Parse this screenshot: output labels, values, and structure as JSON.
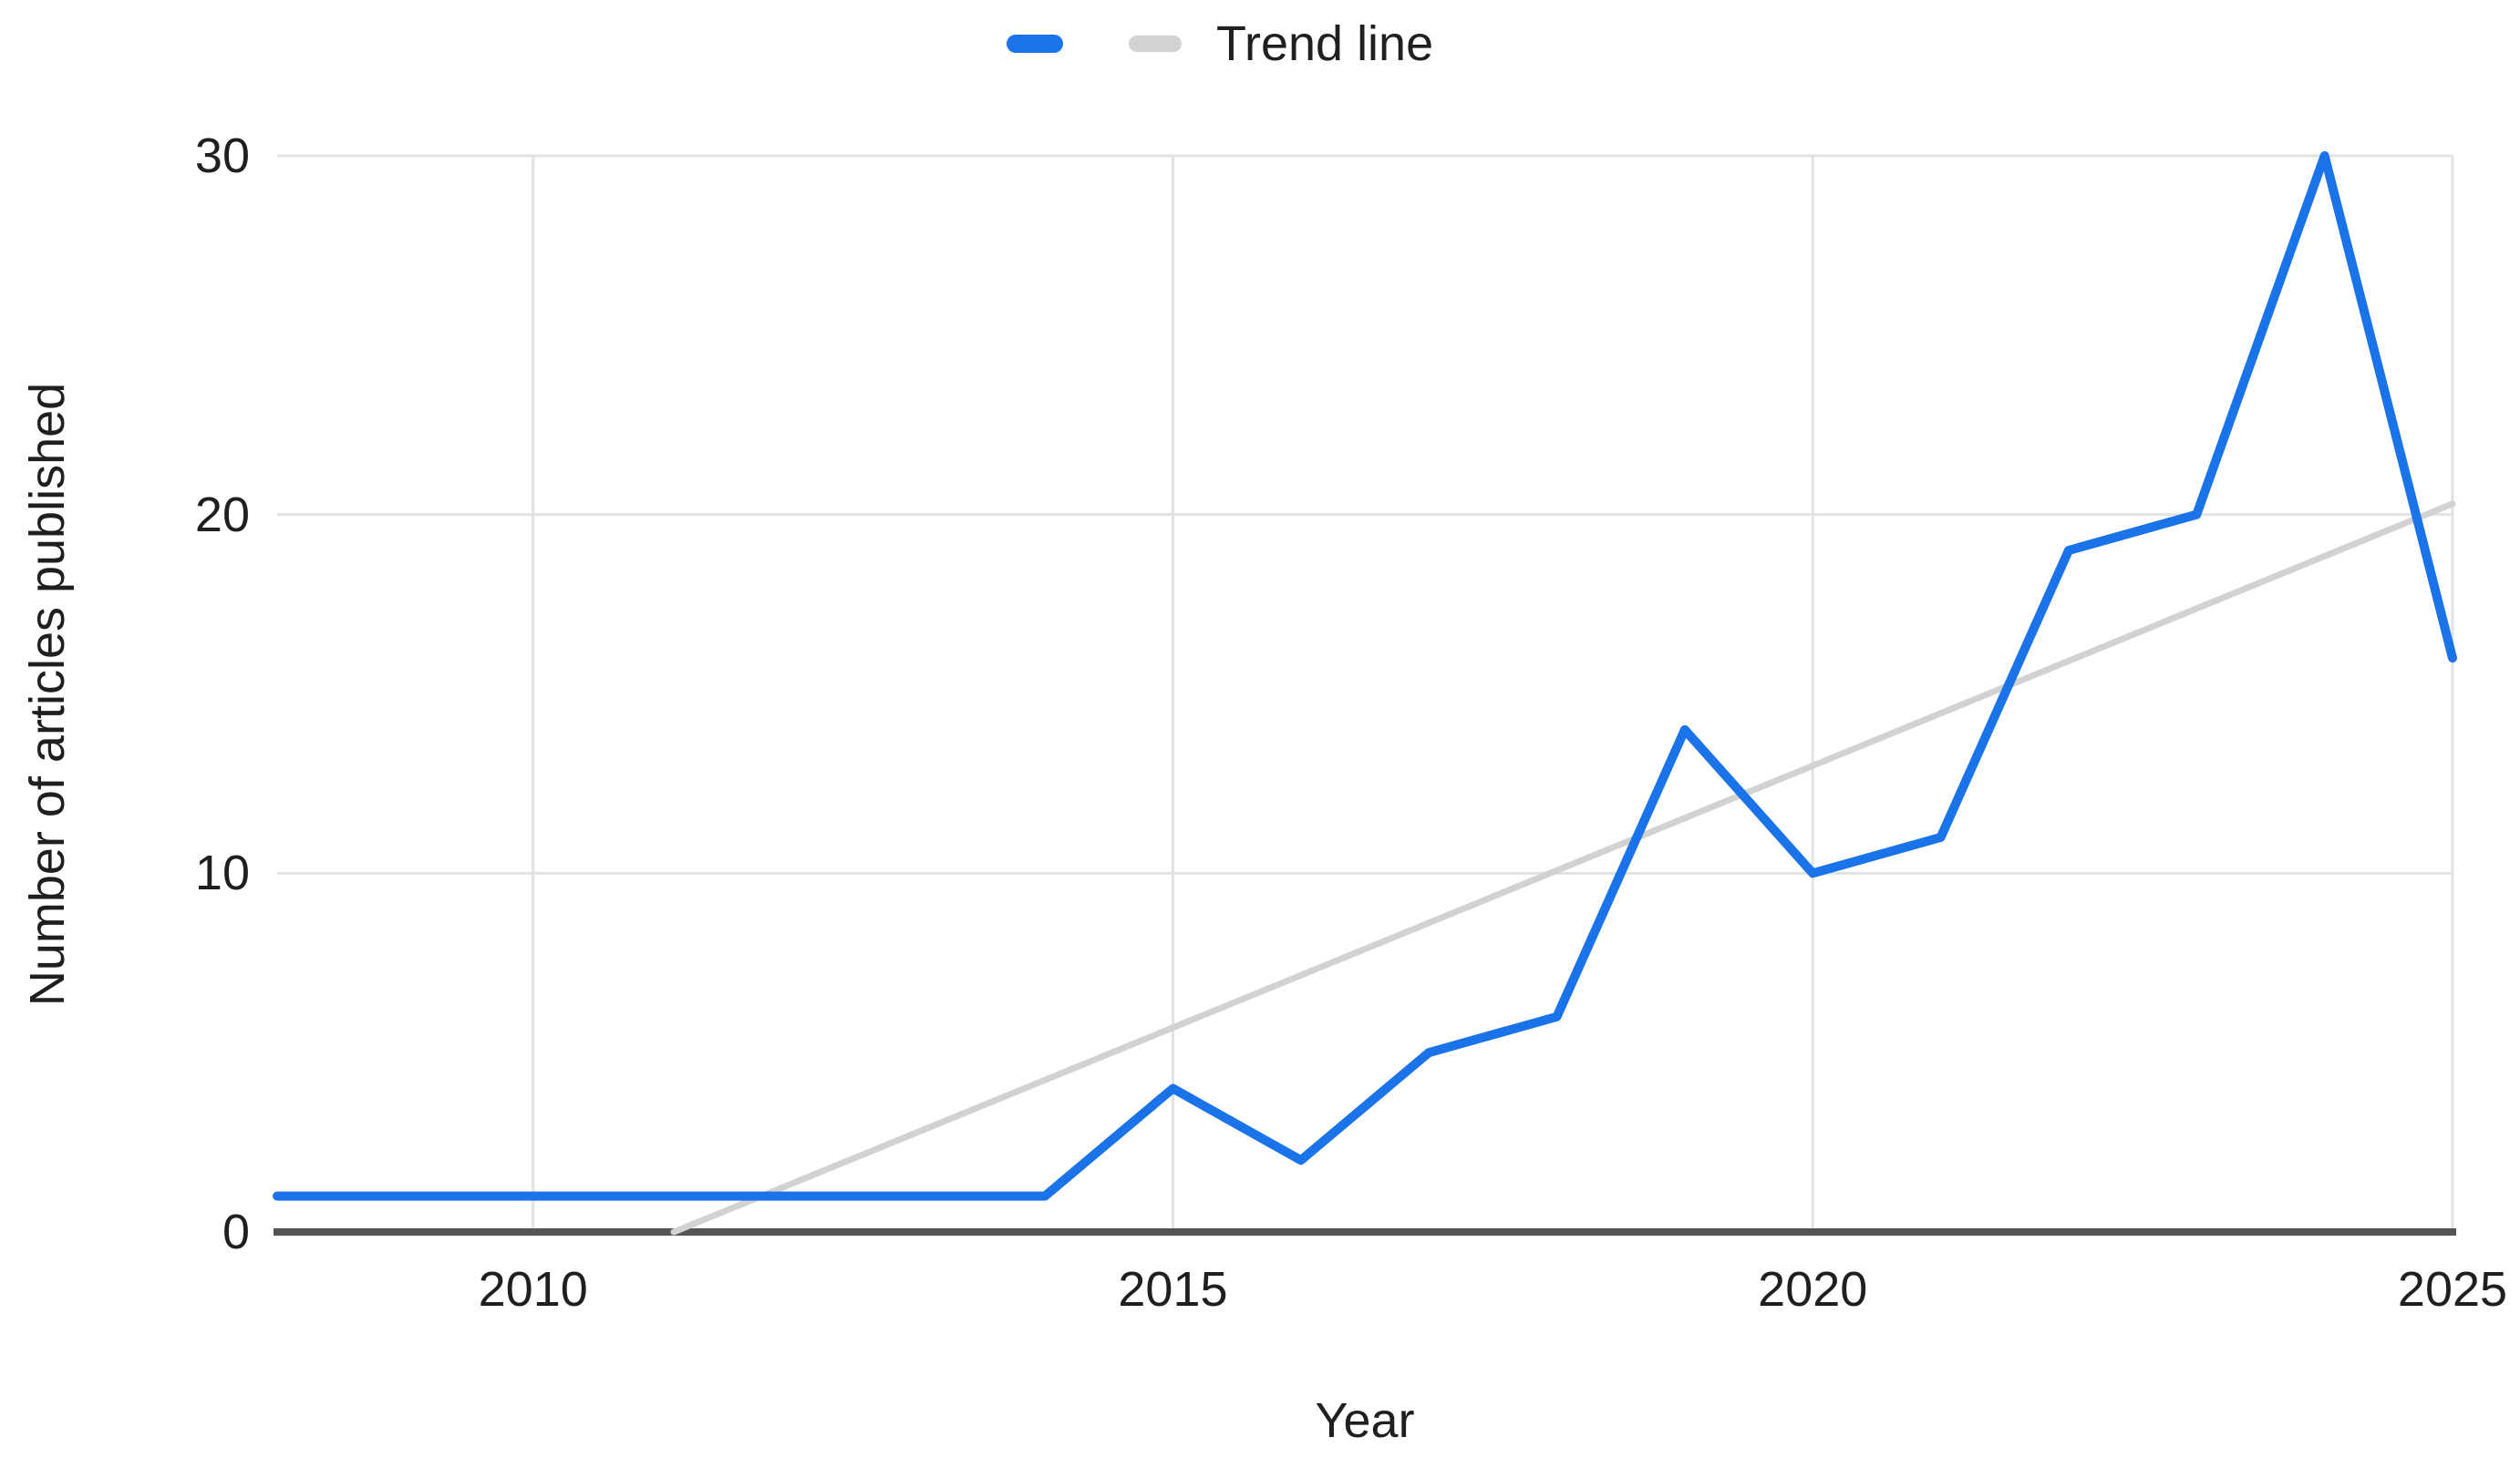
{
  "legend": {
    "series1_label": "",
    "trend_label": "Trend line"
  },
  "axes": {
    "x_title": "Year",
    "y_title": "Number of articles published",
    "x_ticks": [
      2010,
      2015,
      2020,
      2025
    ],
    "y_ticks": [
      0,
      10,
      20,
      30
    ]
  },
  "colors": {
    "series": "#1a73e8",
    "trend": "#d2d2d2",
    "gridline": "#e2e2e2",
    "axis_line": "#545454",
    "label_text": "#1f1f1f"
  },
  "chart_data": {
    "type": "line",
    "title": "",
    "xlabel": "Year",
    "ylabel": "Number of articles published",
    "x": [
      2008,
      2009,
      2010,
      2011,
      2012,
      2013,
      2014,
      2015,
      2016,
      2017,
      2018,
      2019,
      2020,
      2021,
      2022,
      2023,
      2024,
      2025
    ],
    "series": [
      {
        "name": "",
        "color": "#1a73e8",
        "values": [
          1,
          1,
          1,
          1,
          1,
          1,
          1,
          4,
          2,
          5,
          6,
          14,
          10,
          11,
          19,
          20,
          30,
          16
        ]
      }
    ],
    "trend_line": {
      "label": "Trend line",
      "color": "#d2d2d2",
      "start": {
        "x": 2011.1,
        "y": 0
      },
      "end": {
        "x": 2025,
        "y": 20.3
      }
    },
    "xlim": [
      2008,
      2025
    ],
    "ylim": [
      0,
      30
    ],
    "grid": true,
    "legend_position": "top"
  }
}
